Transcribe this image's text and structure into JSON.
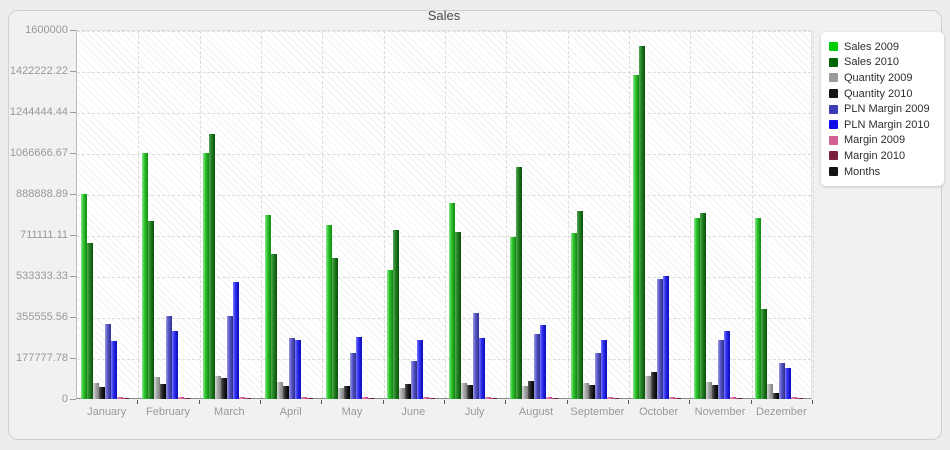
{
  "chart_data": {
    "type": "bar",
    "title": "Sales",
    "legend_position": "right",
    "grid": true,
    "ylim": [
      0,
      1600000
    ],
    "y_tick_labels": [
      "1600000",
      "1422222.22",
      "1244444.44",
      "1066666.67",
      "888888.89",
      "711111.11",
      "533333.33",
      "355555.56",
      "177777.78",
      "0"
    ],
    "categories": [
      "January",
      "February",
      "March",
      "April",
      "May",
      "June",
      "July",
      "August",
      "September",
      "October",
      "November",
      "Dezember"
    ],
    "series": [
      {
        "name": "Sales 2009",
        "swatch": "#00cc00",
        "bar_colors": [
          "#8ae88a",
          "#2abf2a",
          "#0f8a0f"
        ],
        "values": [
          888000,
          1065000,
          1067000,
          796000,
          756000,
          561000,
          851000,
          703000,
          720000,
          1406000,
          786000,
          786000
        ]
      },
      {
        "name": "Sales 2010",
        "swatch": "#006600",
        "bar_colors": [
          "#57a657",
          "#1e7d1e",
          "#0a4f0a"
        ],
        "values": [
          677000,
          771000,
          1147000,
          629000,
          612000,
          735000,
          723000,
          1007000,
          817000,
          1530000,
          807000,
          391000
        ]
      },
      {
        "name": "Quantity 2009",
        "swatch": "#9a9a9a",
        "bar_colors": [
          "#d9d9d9",
          "#ababab",
          "#7f7f7f"
        ],
        "values": [
          69000,
          95000,
          98000,
          72000,
          48000,
          48000,
          69000,
          58000,
          69000,
          101000,
          73000,
          66000
        ]
      },
      {
        "name": "Quantity 2010",
        "swatch": "#141414",
        "bar_colors": [
          "#5a5a5a",
          "#222222",
          "#000000"
        ],
        "values": [
          52000,
          66000,
          91000,
          58000,
          55000,
          66000,
          62000,
          80000,
          59000,
          115000,
          62000,
          26000
        ]
      },
      {
        "name": "PLN Margin 2009",
        "swatch": "#3b3bb8",
        "bar_colors": [
          "#9a9ae0",
          "#5454c4",
          "#2f2f8f"
        ],
        "values": [
          327000,
          358000,
          358000,
          265000,
          200000,
          163000,
          373000,
          282000,
          200000,
          521000,
          257000,
          156000
        ]
      },
      {
        "name": "PLN Margin 2010",
        "swatch": "#0f0fe8",
        "bar_colors": [
          "#7878ff",
          "#2a2aee",
          "#0b0bb0"
        ],
        "values": [
          253000,
          293000,
          508000,
          254000,
          269000,
          254000,
          265000,
          319000,
          254000,
          532000,
          296000,
          135000
        ]
      },
      {
        "name": "Margin 2009",
        "swatch": "#d45f94",
        "bar_colors": [
          "#f0a7c8",
          "#dd6aa0",
          "#b84a7d"
        ],
        "values": [
          8000,
          8000,
          8000,
          8000,
          8000,
          8000,
          8000,
          8000,
          8000,
          8000,
          8000,
          8000
        ]
      },
      {
        "name": "Margin 2010",
        "swatch": "#7a1f3d",
        "bar_colors": [
          "#b05575",
          "#822547",
          "#5c132e"
        ],
        "values": [
          6000,
          6000,
          6000,
          6000,
          6000,
          6000,
          6000,
          6000,
          6000,
          6000,
          6000,
          6000
        ]
      },
      {
        "name": "Months",
        "swatch": "#141414",
        "bar_colors": [
          "#333333",
          "#111111",
          "#000000"
        ],
        "values": [
          1,
          2,
          3,
          4,
          5,
          6,
          7,
          8,
          9,
          10,
          11,
          12
        ]
      }
    ]
  }
}
